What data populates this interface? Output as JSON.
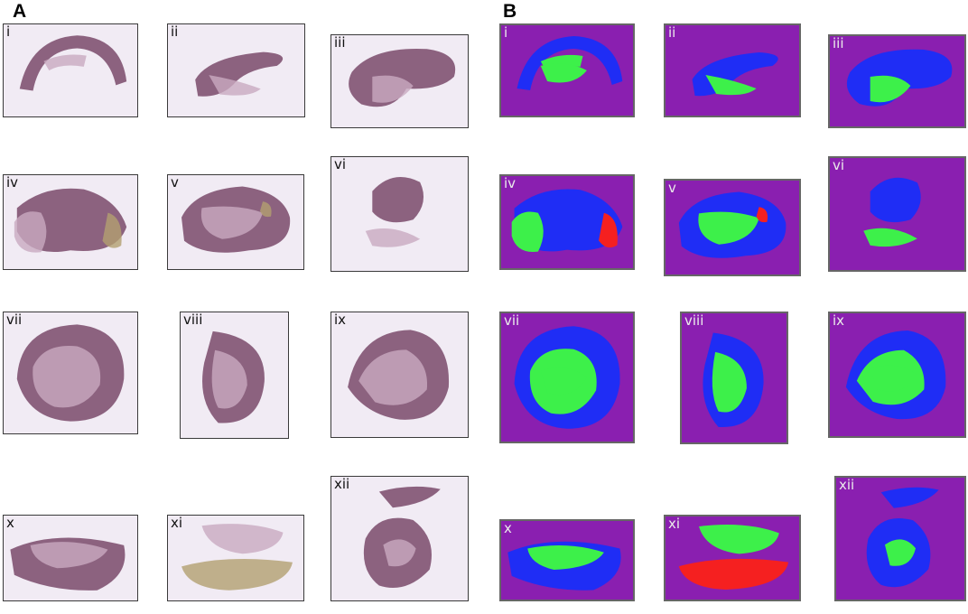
{
  "panels": [
    {
      "letter": "A",
      "kind": "he",
      "tiles": [
        {
          "label": "i"
        },
        {
          "label": "ii"
        },
        {
          "label": "iii"
        },
        {
          "label": "iv"
        },
        {
          "label": "v"
        },
        {
          "label": "vi"
        },
        {
          "label": "vii"
        },
        {
          "label": "viii"
        },
        {
          "label": "ix"
        },
        {
          "label": "x"
        },
        {
          "label": "xi"
        },
        {
          "label": "xii"
        }
      ]
    },
    {
      "letter": "B",
      "kind": "classified",
      "tiles": [
        {
          "label": "i"
        },
        {
          "label": "ii"
        },
        {
          "label": "iii"
        },
        {
          "label": "iv"
        },
        {
          "label": "v"
        },
        {
          "label": "vi"
        },
        {
          "label": "vii"
        },
        {
          "label": "viii"
        },
        {
          "label": "ix"
        },
        {
          "label": "x"
        },
        {
          "label": "xi"
        },
        {
          "label": "xii"
        }
      ]
    }
  ],
  "colors": {
    "he_background": "#f1ebf4",
    "he_tissue_dark": "#7a4a6a",
    "he_tissue_light": "#c9aac0",
    "he_tan": "#b3a070",
    "class_background": "#8a1fb0",
    "class_blue": "#1f2df5",
    "class_green": "#3df04a",
    "class_red": "#f52020"
  }
}
